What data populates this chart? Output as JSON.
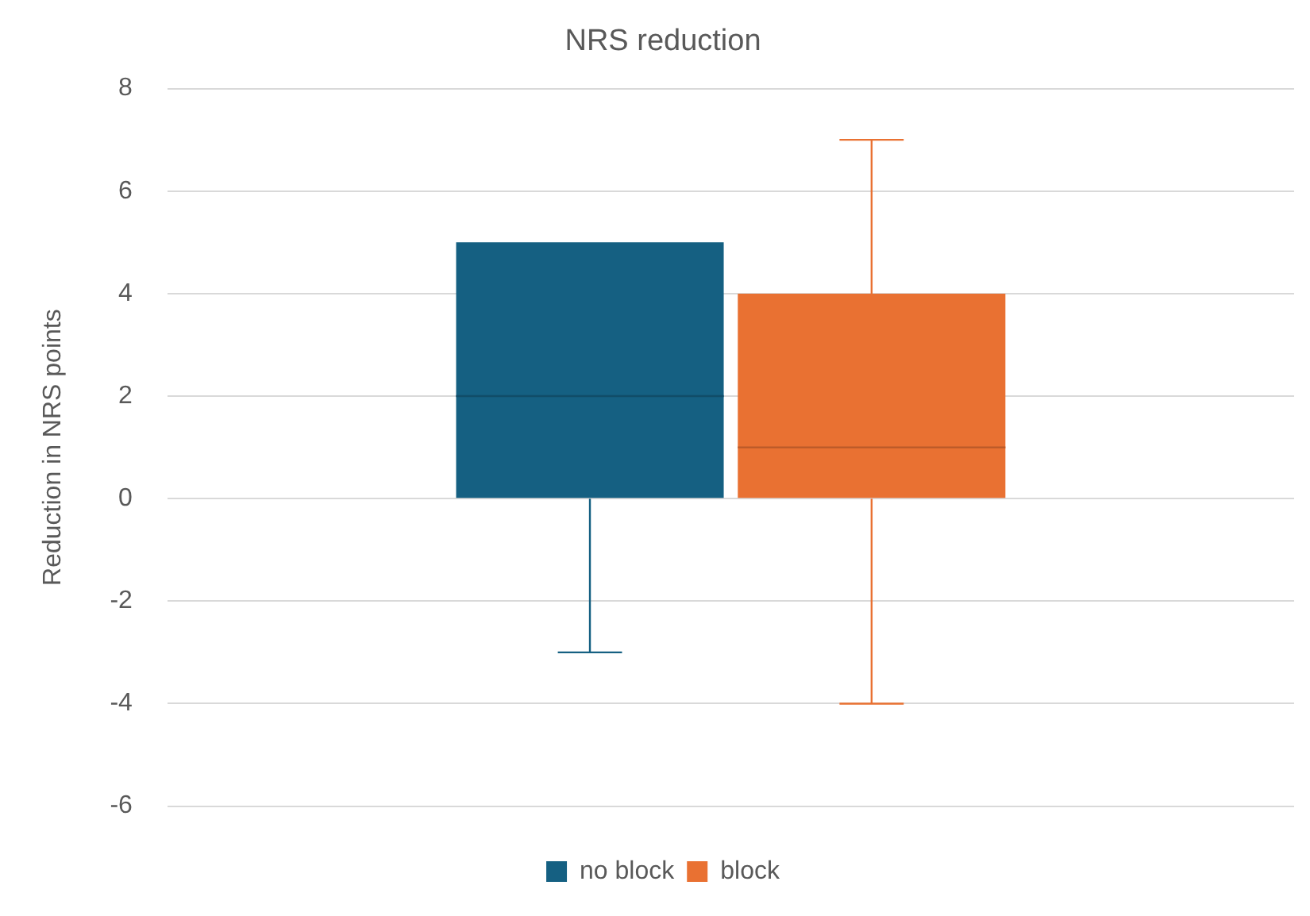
{
  "chart_data": {
    "type": "box",
    "title": "NRS reduction",
    "ylabel": "Reduction in NRS points",
    "categories": [
      null
    ],
    "series": [
      {
        "name": "no block",
        "color": "#156082",
        "boxes": [
          {
            "low": -3,
            "q1": 0,
            "median": 2,
            "q3": 5,
            "high": 5
          }
        ]
      },
      {
        "name": "block",
        "color": "#e97132",
        "boxes": [
          {
            "low": -4,
            "q1": 0,
            "median": 1,
            "q3": 4,
            "high": 7
          }
        ]
      }
    ],
    "ylim": [
      -6,
      8
    ],
    "yticks": [
      -6,
      -4,
      -2,
      0,
      2,
      4,
      6,
      8
    ],
    "grid": "y",
    "legend": "bottom"
  }
}
